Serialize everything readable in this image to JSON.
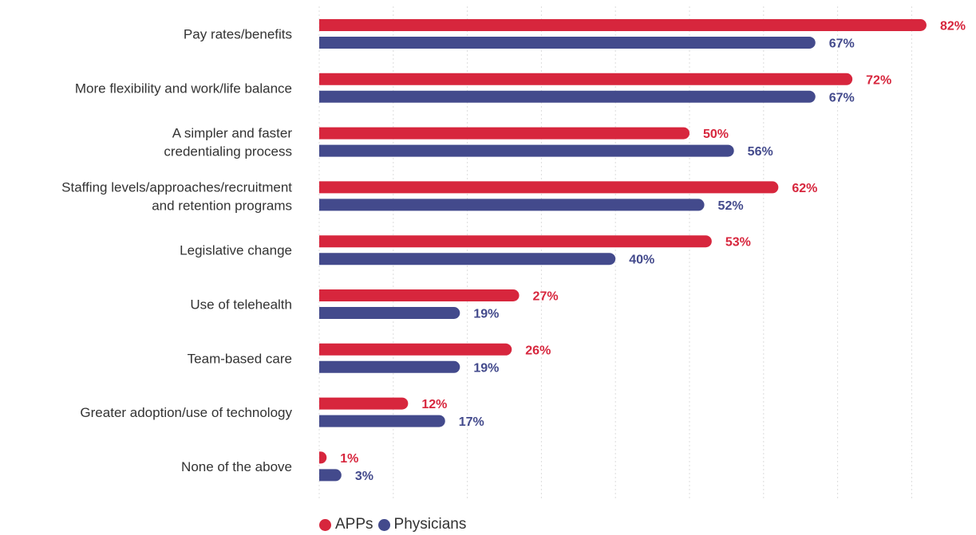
{
  "chart_data": {
    "type": "bar",
    "orientation": "horizontal",
    "categories": [
      [
        "Pay rates/benefits"
      ],
      [
        "More flexibility and work/life balance"
      ],
      [
        "A simpler and faster",
        "credentialing process"
      ],
      [
        "Staffing levels/approaches/recruitment",
        "and retention programs"
      ],
      [
        "Legislative change"
      ],
      [
        "Use of telehealth"
      ],
      [
        "Team-based care"
      ],
      [
        "Greater adoption/use of technology"
      ],
      [
        "None of the above"
      ]
    ],
    "series": [
      {
        "name": "APPs",
        "color": "#d7263d",
        "values": [
          82,
          72,
          50,
          62,
          53,
          27,
          26,
          12,
          1
        ],
        "labels": [
          "82%",
          "72%",
          "50%",
          "62%",
          "53%",
          "27%",
          "26%",
          "12%",
          "1%"
        ]
      },
      {
        "name": "Physicians",
        "color": "#434a8c",
        "values": [
          67,
          67,
          56,
          52,
          40,
          19,
          19,
          17,
          3
        ],
        "labels": [
          "67%",
          "67%",
          "56%",
          "52%",
          "40%",
          "19%",
          "19%",
          "17%",
          "3%"
        ]
      }
    ],
    "xlim": [
      0,
      90
    ],
    "grid": true,
    "legend": "bottom-left"
  }
}
